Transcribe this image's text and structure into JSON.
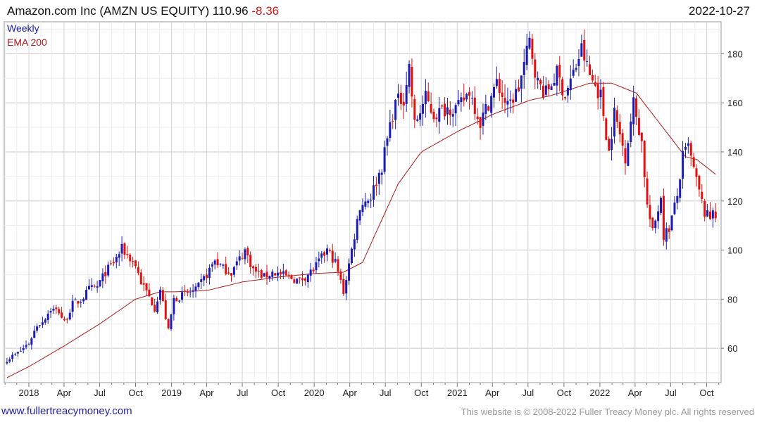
{
  "header": {
    "title": "Amazon.com Inc (AMZN US EQUITY) 110.96",
    "change": "-8.36",
    "date": "2022-10-27"
  },
  "footer": {
    "url_text": "www.fullertreacymoney.com",
    "copyright": "This website is © 2008-2022 Fuller Treacy Money plc. All rights reserved"
  },
  "colors": {
    "up": "#1c1cb4",
    "down": "#e01010",
    "ema": "#b01818",
    "grid": "#dcdcdc"
  },
  "chart_data": {
    "type": "candlestick",
    "period": "weekly",
    "legend": [
      {
        "name": "Weekly",
        "color": "#1c1cb4"
      },
      {
        "name": "EMA 200",
        "color": "#b01818"
      }
    ],
    "legend_position": "top-left",
    "ylim": [
      46,
      193
    ],
    "y_ticks": [
      60,
      80,
      100,
      120,
      140,
      160,
      180
    ],
    "x_ticks": [
      "2018",
      "Apr",
      "Jul",
      "Oct",
      "2019",
      "Apr",
      "Jul",
      "Oct",
      "2020",
      "Apr",
      "Jul",
      "Oct",
      "2021",
      "Apr",
      "Jul",
      "Oct",
      "2022",
      "Apr",
      "Jul",
      "Oct"
    ],
    "x_range": [
      "2017-10-30",
      "2022-11-07"
    ],
    "close_anchors": [
      [
        "2017-11-06",
        55.5
      ],
      [
        "2017-12-04",
        58.0
      ],
      [
        "2018-01-01",
        62.0
      ],
      [
        "2018-01-22",
        69.5
      ],
      [
        "2018-02-05",
        71.0
      ],
      [
        "2018-02-26",
        76.0
      ],
      [
        "2018-03-19",
        75.0
      ],
      [
        "2018-04-02",
        70.5
      ],
      [
        "2018-04-23",
        78.0
      ],
      [
        "2018-05-14",
        79.5
      ],
      [
        "2018-06-04",
        84.0
      ],
      [
        "2018-06-25",
        85.0
      ],
      [
        "2018-07-16",
        91.0
      ],
      [
        "2018-08-06",
        95.0
      ],
      [
        "2018-08-27",
        100.5
      ],
      [
        "2018-09-10",
        98.0
      ],
      [
        "2018-10-01",
        94.0
      ],
      [
        "2018-10-15",
        87.0
      ],
      [
        "2018-10-29",
        83.0
      ],
      [
        "2018-11-19",
        76.5
      ],
      [
        "2018-12-03",
        84.0
      ],
      [
        "2018-12-24",
        67.0
      ],
      [
        "2019-01-07",
        80.0
      ],
      [
        "2019-02-04",
        82.0
      ],
      [
        "2019-03-04",
        83.5
      ],
      [
        "2019-04-01",
        90.0
      ],
      [
        "2019-04-22",
        96.0
      ],
      [
        "2019-05-13",
        92.5
      ],
      [
        "2019-06-03",
        91.0
      ],
      [
        "2019-07-08",
        100.0
      ],
      [
        "2019-07-29",
        92.0
      ],
      [
        "2019-08-26",
        89.0
      ],
      [
        "2019-09-16",
        91.0
      ],
      [
        "2019-10-28",
        89.0
      ],
      [
        "2019-11-25",
        87.5
      ],
      [
        "2019-12-30",
        92.0
      ],
      [
        "2020-02-03",
        100.0
      ],
      [
        "2020-02-24",
        95.0
      ],
      [
        "2020-03-16",
        83.0
      ],
      [
        "2020-04-06",
        100.0
      ],
      [
        "2020-04-27",
        118.0
      ],
      [
        "2020-05-25",
        122.0
      ],
      [
        "2020-06-22",
        134.0
      ],
      [
        "2020-07-13",
        151.0
      ],
      [
        "2020-07-27",
        160.0
      ],
      [
        "2020-08-17",
        162.0
      ],
      [
        "2020-08-31",
        175.0
      ],
      [
        "2020-09-14",
        151.0
      ],
      [
        "2020-10-12",
        162.0
      ],
      [
        "2020-11-02",
        155.0
      ],
      [
        "2020-12-07",
        158.0
      ],
      [
        "2021-01-04",
        158.0
      ],
      [
        "2021-02-01",
        165.0
      ],
      [
        "2021-03-01",
        152.0
      ],
      [
        "2021-04-12",
        168.0
      ],
      [
        "2021-05-10",
        158.0
      ],
      [
        "2021-06-07",
        166.0
      ],
      [
        "2021-07-05",
        185.0
      ],
      [
        "2021-07-26",
        168.0
      ],
      [
        "2021-08-16",
        164.0
      ],
      [
        "2021-09-13",
        172.0
      ],
      [
        "2021-10-04",
        163.0
      ],
      [
        "2021-11-01",
        175.0
      ],
      [
        "2021-11-15",
        182.0
      ],
      [
        "2021-12-06",
        171.0
      ],
      [
        "2022-01-03",
        163.0
      ],
      [
        "2022-01-24",
        140.0
      ],
      [
        "2022-02-07",
        156.0
      ],
      [
        "2022-03-07",
        138.0
      ],
      [
        "2022-03-28",
        160.0
      ],
      [
        "2022-04-18",
        144.0
      ],
      [
        "2022-05-02",
        118.0
      ],
      [
        "2022-05-16",
        107.0
      ],
      [
        "2022-06-06",
        122.0
      ],
      [
        "2022-06-13",
        106.0
      ],
      [
        "2022-06-27",
        109.0
      ],
      [
        "2022-07-18",
        122.0
      ],
      [
        "2022-08-01",
        138.0
      ],
      [
        "2022-08-15",
        142.0
      ],
      [
        "2022-09-05",
        128.0
      ],
      [
        "2022-09-26",
        115.0
      ],
      [
        "2022-10-10",
        113.0
      ],
      [
        "2022-10-20",
        119.3
      ],
      [
        "2022-10-27",
        110.96
      ]
    ],
    "ema_anchors": [
      [
        "2017-11-06",
        48.0
      ],
      [
        "2018-01-01",
        52.5
      ],
      [
        "2018-04-02",
        61.0
      ],
      [
        "2018-07-02",
        70.0
      ],
      [
        "2018-10-01",
        80.0
      ],
      [
        "2018-12-03",
        83.0
      ],
      [
        "2019-01-07",
        83.0
      ],
      [
        "2019-04-01",
        83.5
      ],
      [
        "2019-07-01",
        87.0
      ],
      [
        "2019-10-01",
        89.0
      ],
      [
        "2020-01-06",
        90.5
      ],
      [
        "2020-03-16",
        91.0
      ],
      [
        "2020-05-04",
        95.0
      ],
      [
        "2020-06-01",
        105.0
      ],
      [
        "2020-08-03",
        127.0
      ],
      [
        "2020-10-01",
        140.0
      ],
      [
        "2021-01-04",
        148.5
      ],
      [
        "2021-04-05",
        155.5
      ],
      [
        "2021-07-05",
        161.0
      ],
      [
        "2021-08-30",
        163.0
      ],
      [
        "2021-12-06",
        168.0
      ],
      [
        "2022-01-31",
        168.0
      ],
      [
        "2022-04-04",
        164.0
      ],
      [
        "2022-06-06",
        151.0
      ],
      [
        "2022-08-08",
        138.0
      ],
      [
        "2022-09-05",
        137.0
      ],
      [
        "2022-10-27",
        130.5
      ]
    ]
  }
}
